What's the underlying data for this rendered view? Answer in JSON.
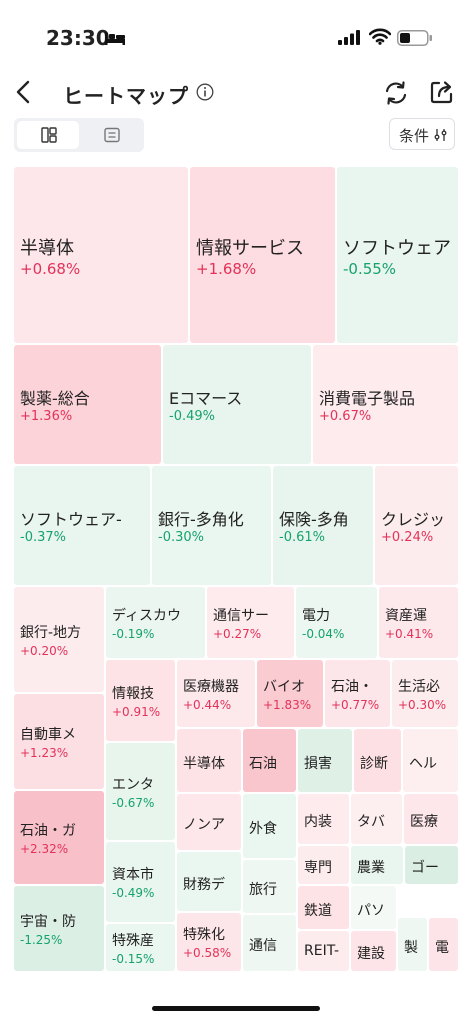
{
  "status_bar": {
    "time": "23:30"
  },
  "header": {
    "title": "ヒートマップ"
  },
  "filter": {
    "label": "条件"
  },
  "colors": {
    "up": "#e3325a",
    "down": "#15a36c"
  },
  "tiles": [
    {
      "name": "半導体",
      "change": "+0.68%"
    },
    {
      "name": "情報サービス",
      "change": "+1.68%"
    },
    {
      "name": "ソフトウェア",
      "change": "-0.55%"
    },
    {
      "name": "製薬-総合",
      "change": "+1.36%"
    },
    {
      "name": "Eコマース",
      "change": "-0.49%"
    },
    {
      "name": "消費電子製品",
      "change": "+0.67%"
    },
    {
      "name": "ソフトウェア-",
      "change": "-0.37%"
    },
    {
      "name": "銀行-多角化",
      "change": "-0.30%"
    },
    {
      "name": "保険-多角",
      "change": "-0.61%"
    },
    {
      "name": "クレジッ",
      "change": "+0.24%"
    },
    {
      "name": "銀行-地方",
      "change": "+0.20%"
    },
    {
      "name": "ディスカウ",
      "change": "-0.19%"
    },
    {
      "name": "通信サー",
      "change": "+0.27%"
    },
    {
      "name": "電力",
      "change": "-0.04%"
    },
    {
      "name": "資産運",
      "change": "+0.41%"
    },
    {
      "name": "情報技",
      "change": "+0.91%"
    },
    {
      "name": "医療機器",
      "change": "+0.44%"
    },
    {
      "name": "バイオ",
      "change": "+1.83%"
    },
    {
      "name": "石油・",
      "change": "+0.77%"
    },
    {
      "name": "生活必",
      "change": "+0.30%"
    },
    {
      "name": "自動車メ",
      "change": "+1.23%"
    },
    {
      "name": "エンタ",
      "change": "-0.67%"
    },
    {
      "name": "半導体",
      "change": ""
    },
    {
      "name": "石油",
      "change": ""
    },
    {
      "name": "損害",
      "change": ""
    },
    {
      "name": "診断",
      "change": ""
    },
    {
      "name": "ヘル",
      "change": ""
    },
    {
      "name": "石油・ガ",
      "change": "+2.32%"
    },
    {
      "name": "ノンア",
      "change": ""
    },
    {
      "name": "外食",
      "change": ""
    },
    {
      "name": "内装",
      "change": ""
    },
    {
      "name": "タバ",
      "change": ""
    },
    {
      "name": "医療",
      "change": ""
    },
    {
      "name": "資本市",
      "change": "-0.49%"
    },
    {
      "name": "専門",
      "change": ""
    },
    {
      "name": "農業",
      "change": ""
    },
    {
      "name": "ゴー",
      "change": ""
    },
    {
      "name": "財務デ",
      "change": ""
    },
    {
      "name": "旅行",
      "change": ""
    },
    {
      "name": "宇宙・防",
      "change": "-1.25%"
    },
    {
      "name": "特殊産",
      "change": "-0.15%"
    },
    {
      "name": "鉄道",
      "change": ""
    },
    {
      "name": "パソ",
      "change": ""
    },
    {
      "name": "特殊化",
      "change": "+0.58%"
    },
    {
      "name": "通信",
      "change": ""
    },
    {
      "name": "REIT-",
      "change": ""
    },
    {
      "name": "建設",
      "change": ""
    },
    {
      "name": "製",
      "change": ""
    },
    {
      "name": "電",
      "change": ""
    }
  ]
}
